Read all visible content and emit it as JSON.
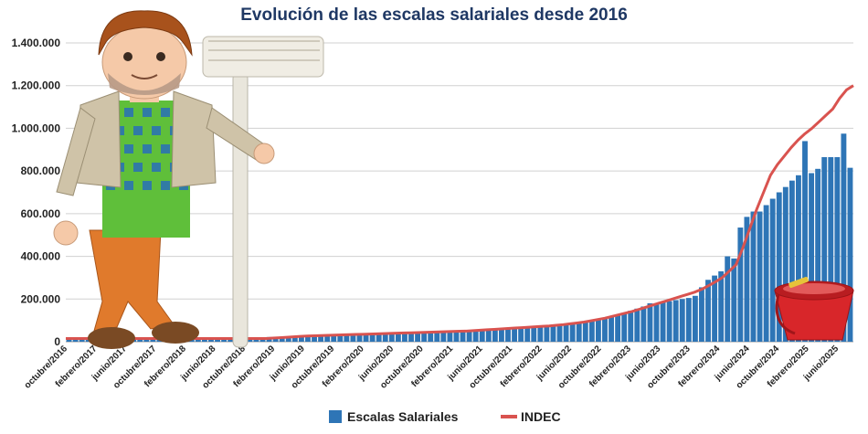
{
  "chart_data": {
    "type": "bar",
    "title": "Evolución de las escalas salariales desde 2016",
    "xlabel": "",
    "ylabel": "",
    "ylim": [
      0,
      1400000
    ],
    "yticks": [
      0,
      200000,
      400000,
      600000,
      800000,
      1000000,
      1200000,
      1400000
    ],
    "ytick_labels": [
      "0",
      "200.000",
      "400.000",
      "600.000",
      "800.000",
      "1.000.000",
      "1.200.000",
      "1.400.000"
    ],
    "grid": true,
    "legend_position": "bottom",
    "colors": {
      "bars": "#2e75b6",
      "line": "#d9534f"
    },
    "xtick_labels": [
      "octubre/2016",
      "febrero/2017",
      "junio/2017",
      "octubre/2017",
      "febrero/2018",
      "junio/2018",
      "octubre/2018",
      "febrero/2019",
      "junio/2019",
      "octubre/2019",
      "febrero/2020",
      "junio/2020",
      "octubre/2020",
      "febrero/2021",
      "junio/2021",
      "octubre/2021",
      "febrero/2022",
      "junio/2022",
      "octubre/2022",
      "febrero/2023",
      "junio/2023",
      "octubre/2023",
      "febrero/2024",
      "junio/2024",
      "octubre/2024",
      "febrero/2025",
      "junio/2025"
    ],
    "series": [
      {
        "name": "Escalas Salariales",
        "kind": "bar",
        "values": [
          20000,
          20000,
          20000,
          20000,
          20000,
          20000,
          20000,
          20000,
          20000,
          20000,
          20000,
          20000,
          20000,
          20000,
          20000,
          20000,
          20000,
          20000,
          20000,
          20000,
          20000,
          20000,
          20000,
          20000,
          20000,
          20000,
          20000,
          20000,
          20000,
          20000,
          21000,
          22000,
          23000,
          24000,
          25000,
          26000,
          27000,
          28000,
          29000,
          30000,
          31000,
          32000,
          33000,
          34000,
          35000,
          36000,
          37000,
          38000,
          39000,
          40000,
          41000,
          42000,
          43000,
          44000,
          45000,
          46000,
          47000,
          48000,
          49000,
          50000,
          51000,
          52000,
          53000,
          54000,
          55000,
          56000,
          57000,
          58000,
          59000,
          60000,
          62000,
          64000,
          66000,
          68000,
          70000,
          73000,
          76000,
          80000,
          84000,
          88000,
          93000,
          98000,
          103000,
          108000,
          115000,
          125000,
          135000,
          145000,
          155000,
          165000,
          180000,
          180000,
          185000,
          190000,
          195000,
          200000,
          205000,
          215000,
          255000,
          290000,
          310000,
          330000,
          400000,
          390000,
          535000,
          585000,
          610000,
          610000,
          640000,
          670000,
          700000,
          725000,
          755000,
          780000,
          940000,
          790000,
          810000,
          865000,
          865000,
          865000,
          975000,
          815000
        ]
      },
      {
        "name": "INDEC",
        "kind": "line",
        "values": [
          15000,
          15000,
          15000,
          15000,
          15000,
          15000,
          15000,
          15000,
          15000,
          15000,
          15000,
          15000,
          15000,
          15000,
          15000,
          15000,
          15000,
          15000,
          15000,
          15000,
          15000,
          15000,
          15000,
          15000,
          15000,
          15000,
          15000,
          15000,
          15000,
          15000,
          17000,
          19000,
          21000,
          23000,
          25000,
          27000,
          28000,
          29000,
          30000,
          31000,
          32000,
          33000,
          34000,
          35000,
          36000,
          37000,
          38000,
          39000,
          40000,
          41000,
          42000,
          43000,
          44000,
          45000,
          46000,
          47000,
          48000,
          49000,
          50000,
          52000,
          54000,
          56000,
          58000,
          60000,
          62000,
          64000,
          66000,
          68000,
          70000,
          72000,
          74000,
          77000,
          80000,
          84000,
          88000,
          92000,
          98000,
          104000,
          110000,
          118000,
          126000,
          134000,
          142000,
          152000,
          162000,
          172000,
          182000,
          192000,
          202000,
          212000,
          222000,
          232000,
          245000,
          262000,
          280000,
          300000,
          330000,
          360000,
          440000,
          530000,
          620000,
          700000,
          780000,
          830000,
          870000,
          910000,
          945000,
          975000,
          1000000,
          1030000,
          1060000,
          1090000,
          1140000,
          1180000,
          1200000
        ]
      }
    ]
  }
}
